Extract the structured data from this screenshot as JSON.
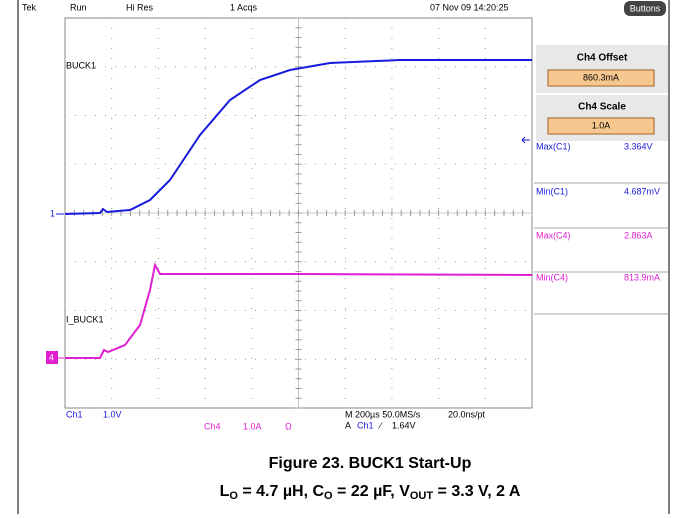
{
  "status_bar": {
    "brand": "Tek",
    "state": "Run",
    "mode": "Hi Res",
    "acqs": "1 Acqs",
    "timestamp": "07 Nov 09 14:20:25",
    "button": "Buttons"
  },
  "side_panel": {
    "offset": {
      "title": "Ch4 Offset",
      "value": "860.3mA"
    },
    "scale": {
      "title": "Ch4 Scale",
      "value": "1.0A"
    },
    "measurements": [
      {
        "name": "Max(C1)",
        "value": "3.364V"
      },
      {
        "name": "Min(C1)",
        "value": "4.687mV"
      },
      {
        "name": "Max(C4)",
        "value": "2.863A"
      },
      {
        "name": "Min(C4)",
        "value": "813.9mA"
      }
    ]
  },
  "traces": {
    "ch1_label": "BUCK1",
    "ch4_label": "I_BUCK1",
    "ch1_marker": "1",
    "ch4_marker": "4"
  },
  "bottom": {
    "ch1": "Ch1",
    "ch1_scale": "1.0V",
    "ch4": "Ch4",
    "ch4_scale": "1.0A",
    "ohm": "Ω",
    "timebase": "M 200µs 50.0MS/s",
    "resolution": "20.0ns/pt",
    "trigger_mode": "A",
    "trigger_source": "Ch1",
    "trigger_slope": "∕",
    "trigger_level": "1.64V"
  },
  "caption": {
    "title": "Figure 23. BUCK1 Start-Up",
    "conditions": [
      "L",
      "O",
      " = 4.7 µH, C",
      "O",
      " = 22 µF, V",
      "OUT",
      " = 3.3 V, 2 A"
    ]
  }
}
